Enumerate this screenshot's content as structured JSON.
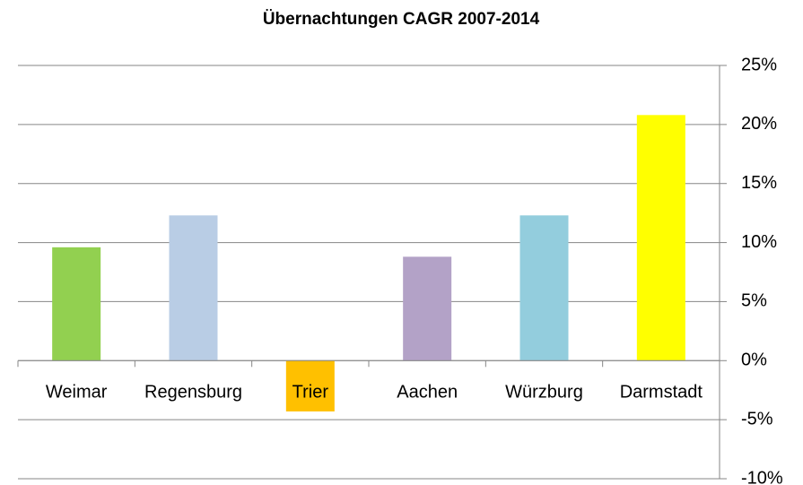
{
  "chart_data": {
    "type": "bar",
    "title": "Übernachtungen CAGR 2007-2014",
    "categories": [
      "Weimar",
      "Regensburg",
      "Trier",
      "Aachen",
      "Würzburg",
      "Darmstadt"
    ],
    "values": [
      9.6,
      12.3,
      -4.3,
      8.8,
      12.3,
      20.8
    ],
    "colors": [
      "#92d050",
      "#b9cde5",
      "#ffc000",
      "#b3a2c7",
      "#93cddd",
      "#ffff00"
    ],
    "ylim": [
      -10,
      25
    ],
    "yticks": [
      {
        "value": -10,
        "label": "-10%"
      },
      {
        "value": -5,
        "label": "-5%"
      },
      {
        "value": 0,
        "label": "0%"
      },
      {
        "value": 5,
        "label": "5%"
      },
      {
        "value": 10,
        "label": "10%"
      },
      {
        "value": 15,
        "label": "15%"
      },
      {
        "value": 20,
        "label": "20%"
      },
      {
        "value": 25,
        "label": "25%"
      }
    ],
    "grid": true,
    "y_axis_side": "right"
  }
}
